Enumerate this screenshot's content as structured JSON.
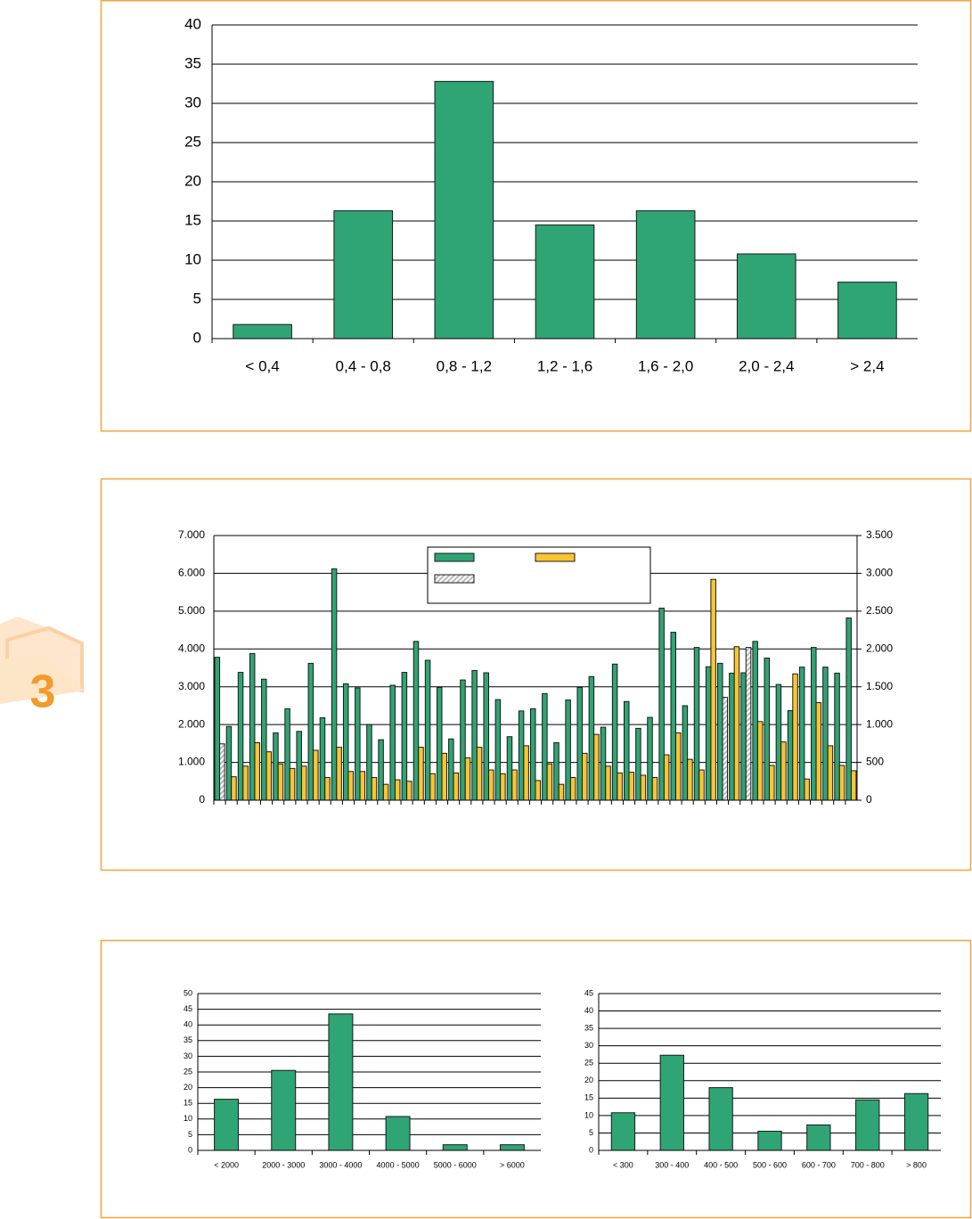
{
  "badge": "3",
  "chart_data": [
    {
      "type": "bar",
      "categories": [
        "<  0,4",
        "0,4 - 0,8",
        "0,8 - 1,2",
        "1,2 - 1,6",
        "1,6 - 2,0",
        "2,0 - 2,4",
        "> 2,4"
      ],
      "values": [
        1.8,
        16.3,
        32.8,
        14.5,
        16.3,
        10.8,
        7.2
      ],
      "color": "#2fa474",
      "ylim": [
        0,
        40
      ],
      "yticks": [
        0,
        5,
        10,
        15,
        20,
        25,
        30,
        35,
        40
      ],
      "grid": true
    },
    {
      "type": "bar",
      "legend": true,
      "categories": [
        null,
        null,
        null,
        null,
        null,
        null,
        null,
        null,
        null,
        null,
        null,
        null,
        null,
        null,
        null,
        null,
        null,
        null,
        null,
        null,
        null,
        null,
        null,
        null,
        null,
        null,
        null,
        null,
        null,
        null,
        null,
        null,
        null,
        null,
        null,
        null,
        null,
        null,
        null,
        null,
        null,
        null,
        null,
        null,
        null,
        null,
        null,
        null,
        null,
        null,
        null,
        null,
        null,
        null,
        null
      ],
      "series": [
        {
          "color": "#2fa474",
          "values": [
            3780,
            1950,
            3380,
            3880,
            3200,
            1780,
            2420,
            1820,
            3620,
            2180,
            6120,
            3080,
            2970,
            2000,
            1600,
            3040,
            3380,
            4200,
            3700,
            2980,
            1620,
            3180,
            3430,
            3370,
            2660,
            1680,
            2360,
            2420,
            2820,
            1520,
            2650,
            2980,
            3270,
            1930,
            3600,
            2610,
            1900,
            2190,
            5080,
            4440,
            2500,
            4040,
            3530,
            3620,
            3360,
            3370,
            4200,
            3760,
            3060,
            2370,
            3520,
            4040,
            3520,
            3360,
            4820
          ]
        },
        {
          "color": "#f9c532",
          "axis": "y2",
          "values": [
            null,
            310,
            450,
            760,
            640,
            480,
            420,
            450,
            660,
            300,
            700,
            380,
            380,
            300,
            210,
            270,
            250,
            700,
            350,
            620,
            360,
            560,
            700,
            400,
            350,
            400,
            720,
            260,
            480,
            210,
            300,
            620,
            870,
            450,
            360,
            370,
            330,
            300,
            600,
            890,
            540,
            400,
            2920,
            null,
            2030,
            null,
            1040,
            460,
            770,
            1670,
            280,
            1290,
            720,
            460,
            390
          ]
        },
        {
          "color": "#b8b8b8",
          "pattern": "hatch",
          "axis": "y2",
          "values": [
            745,
            null,
            null,
            null,
            null,
            null,
            null,
            null,
            null,
            null,
            null,
            null,
            null,
            null,
            null,
            null,
            null,
            null,
            null,
            null,
            null,
            null,
            null,
            null,
            null,
            null,
            null,
            null,
            null,
            null,
            null,
            null,
            null,
            null,
            null,
            null,
            null,
            null,
            null,
            null,
            null,
            null,
            null,
            1360,
            null,
            2020,
            null,
            null,
            null,
            null,
            null,
            null,
            null,
            null,
            null
          ]
        }
      ],
      "ylim": [
        0,
        7000
      ],
      "yticks": [
        0,
        {
          "value": 1000,
          "label": "1.000"
        },
        {
          "value": 2000,
          "label": "2.000"
        },
        {
          "value": 3000,
          "label": "3.000"
        },
        {
          "value": 4000,
          "label": "4.000"
        },
        {
          "value": 5000,
          "label": "5.000"
        },
        {
          "value": 6000,
          "label": "6.000"
        },
        {
          "value": 7000,
          "label": "7.000"
        }
      ],
      "y2lim": [
        0,
        3500
      ],
      "y2ticks": [
        0,
        500,
        {
          "value": 1000,
          "label": "1.000"
        },
        {
          "value": 1500,
          "label": "1.500"
        },
        {
          "value": 2000,
          "label": "2.000"
        },
        {
          "value": 2500,
          "label": "2.500"
        },
        {
          "value": 3000,
          "label": "3.000"
        },
        {
          "value": 3500,
          "label": "3.500"
        }
      ],
      "grid": true
    },
    {
      "type": "bar",
      "categories": [
        "< 2000",
        "2000 - 3000",
        "3000 - 4000",
        "4000 - 5000",
        "5000 - 6000",
        "> 6000"
      ],
      "values": [
        16.3,
        25.5,
        43.5,
        10.8,
        1.8,
        1.8
      ],
      "color": "#2fa474",
      "ylim": [
        0,
        50
      ],
      "yticks": [
        0,
        5,
        10,
        15,
        20,
        25,
        30,
        35,
        40,
        45,
        50
      ],
      "grid": true
    },
    {
      "type": "bar",
      "categories": [
        "<  300",
        "300 - 400",
        "400 - 500",
        "500 - 600",
        "600 - 700",
        "700 - 800",
        "> 800"
      ],
      "values": [
        10.8,
        27.3,
        18,
        5.5,
        7.3,
        14.5,
        16.3
      ],
      "color": "#2fa474",
      "ylim": [
        0,
        45
      ],
      "yticks": [
        0,
        5,
        10,
        15,
        20,
        25,
        30,
        35,
        40,
        45
      ],
      "grid": true
    }
  ]
}
